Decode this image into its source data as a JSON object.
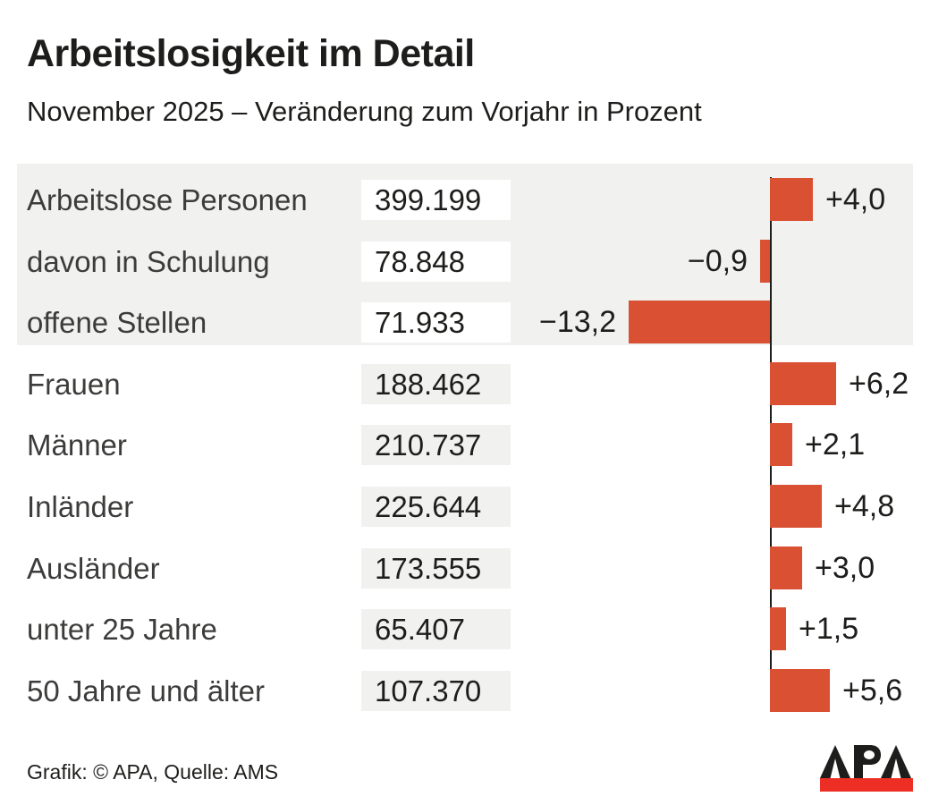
{
  "header": {
    "title": "Arbeitslosigkeit im Detail",
    "subtitle": "November 2025 – Veränderung zum Vorjahr in Prozent"
  },
  "chart_data": {
    "type": "bar",
    "orientation": "horizontal",
    "title": "Arbeitslosigkeit im Detail",
    "subtitle": "November 2025 – Veränderung zum Vorjahr in Prozent",
    "unit": "Prozent (Veränderung zum Vorjahr)",
    "bar_color": "#d95033",
    "highlight_band_color": "#f1f1ef",
    "baseline_value": 0,
    "approx_value_range": [
      -13.2,
      6.2
    ],
    "rows": [
      {
        "label": "Arbeitslose Personen",
        "value": "399.199",
        "change": 4.0,
        "change_label": "+4,0",
        "band": true
      },
      {
        "label": "davon in Schulung",
        "value": "78.848",
        "change": -0.9,
        "change_label": "−0,9",
        "band": true
      },
      {
        "label": "offene Stellen",
        "value": "71.933",
        "change": -13.2,
        "change_label": "−13,2",
        "band": true
      },
      {
        "label": "Frauen",
        "value": "188.462",
        "change": 6.2,
        "change_label": "+6,2",
        "band": false
      },
      {
        "label": "Männer",
        "value": "210.737",
        "change": 2.1,
        "change_label": "+2,1",
        "band": false
      },
      {
        "label": "Inländer",
        "value": "225.644",
        "change": 4.8,
        "change_label": "+4,8",
        "band": false
      },
      {
        "label": "Ausländer",
        "value": "173.555",
        "change": 3.0,
        "change_label": "+3,0",
        "band": false
      },
      {
        "label": "unter 25 Jahre",
        "value": "65.407",
        "change": 1.5,
        "change_label": "+1,5",
        "band": false
      },
      {
        "label": "50 Jahre und älter",
        "value": "107.370",
        "change": 5.6,
        "change_label": "+5,6",
        "band": false
      }
    ]
  },
  "footer": {
    "credit": "Grafik: © APA, Quelle: AMS",
    "logo_text": "APA",
    "logo_red": "#ed2e24",
    "logo_black": "#1d1d1b"
  }
}
